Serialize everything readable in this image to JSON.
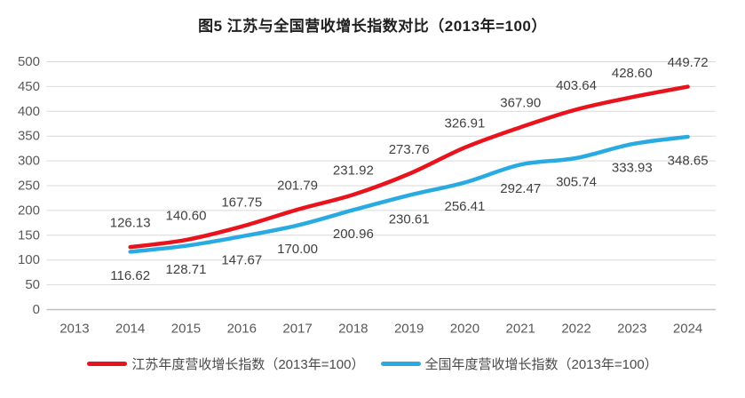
{
  "title": "图5  江苏与全国营收增长指数对比（2013年=100）",
  "colors": {
    "jiangsu_line": "#e8141d",
    "national_line": "#29abe2",
    "gridline": "#d9d9d9",
    "axis_line": "#bfbfbf",
    "axis_text": "#595959",
    "data_label_text": "#404040",
    "title_text": "#1f1f1f"
  },
  "chart_data": {
    "type": "line",
    "title": "图5  江苏与全国营收增长指数对比（2013年=100）",
    "categories": [
      "2013",
      "2014",
      "2015",
      "2016",
      "2017",
      "2018",
      "2019",
      "2020",
      "2021",
      "2022",
      "2023",
      "2024"
    ],
    "series": [
      {
        "name": "江苏年度营收增长指数（2013年=100）",
        "color": "#e8141d",
        "label_position": "above",
        "values": [
          null,
          126.13,
          140.6,
          167.75,
          201.79,
          231.92,
          273.76,
          326.91,
          367.9,
          403.64,
          428.6,
          449.72
        ]
      },
      {
        "name": "全国年度营收增长指数（2013年=100）",
        "color": "#29abe2",
        "label_position": "below",
        "values": [
          null,
          116.62,
          128.71,
          147.67,
          170.0,
          200.96,
          230.61,
          256.41,
          292.47,
          305.74,
          333.93,
          348.65
        ]
      }
    ],
    "ylim": [
      0,
      500
    ],
    "ytick_step": 50,
    "value_decimals": 2,
    "grid": true,
    "smooth_lines": true,
    "legend_position": "bottom"
  }
}
